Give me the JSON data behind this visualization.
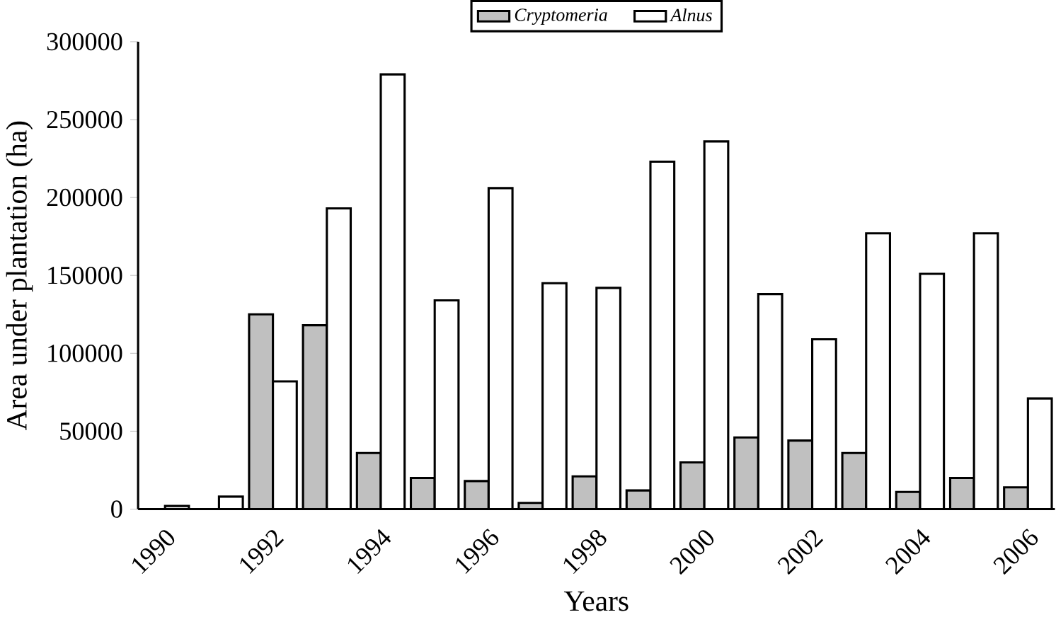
{
  "chart_data": {
    "type": "bar",
    "xlabel": "Years",
    "ylabel": "Area under plantation (ha)",
    "categories": [
      "1990",
      null,
      "1992",
      null,
      "1994",
      null,
      "1996",
      null,
      "1998",
      null,
      "2000",
      null,
      "2002",
      null,
      "2004",
      null,
      "2006"
    ],
    "series": [
      {
        "name": "*Cryptomeria*",
        "color": "#c0c0c0",
        "values": [
          null,
          null,
          125000,
          118000,
          36000,
          20000,
          18000,
          4000,
          21000,
          12000,
          30000,
          46000,
          44000,
          36000,
          11000,
          20000,
          14000
        ]
      },
      {
        "name": "*Alnus*",
        "color": "#ffffff",
        "values": [
          2000,
          8000,
          82000,
          193000,
          279000,
          134000,
          206000,
          145000,
          142000,
          223000,
          236000,
          138000,
          109000,
          177000,
          151000,
          177000,
          71000
        ]
      }
    ],
    "ylim": [
      0,
      300000
    ],
    "yticks": [
      0,
      50000,
      100000,
      150000,
      200000,
      250000,
      300000
    ],
    "legend": "top",
    "grid": false
  }
}
